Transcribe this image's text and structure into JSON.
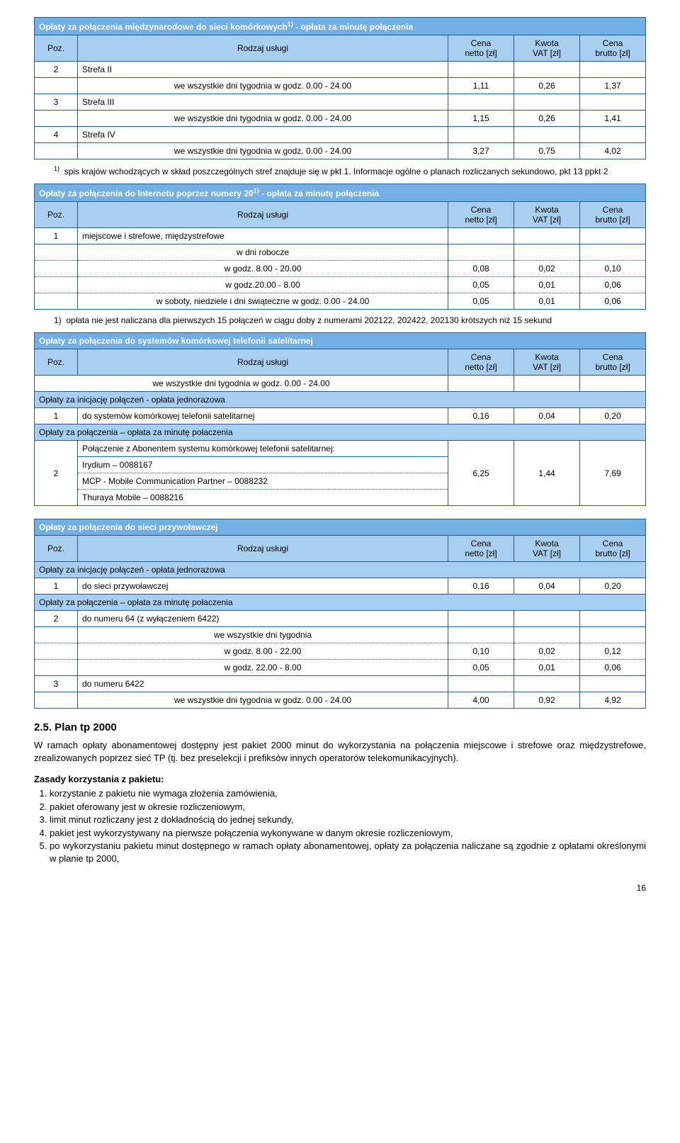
{
  "cols": {
    "poz": "Poz.",
    "name": "Rodzaj usługi",
    "c1a": "Cena",
    "c1b": "netto [zł]",
    "c2a": "Kwota",
    "c2b": "VAT [zł]",
    "c3a": "Cena",
    "c3b": "brutto [zł]"
  },
  "t1": {
    "title": "Opłaty za połączenia międzynarodowe do sieci komórkowych",
    "title_sup": "1)",
    "title2": " - opłata za minutę połączenia",
    "r2_poz": "2",
    "r2_txt": "Strefa II",
    "r2_sub": "we wszystkie dni tygodnia w godz. 0.00 - 24.00",
    "r2_v": [
      "1,11",
      "0,26",
      "1,37"
    ],
    "r3_poz": "3",
    "r3_txt": "Strefa III",
    "r3_sub": "we wszystkie dni tygodnia w godz. 0.00 - 24.00",
    "r3_v": [
      "1,15",
      "0,26",
      "1,41"
    ],
    "r4_poz": "4",
    "r4_txt": "Strefa IV",
    "r4_sub": "we wszystkie dni tygodnia w godz. 0.00 - 24.00",
    "r4_v": [
      "3,27",
      "0,75",
      "4,02"
    ],
    "foot_sup": "1)",
    "foot": "spis krajów wchodzących w skład poszczególnych stref znajduje się w pkt 1. Informacje ogólne o planach rozliczanych sekundowo, pkt 13 ppkt 2"
  },
  "t2": {
    "title": "Opłaty za połączenia do Internetu poprzez numery 20",
    "title_sup": "1)",
    "title2": " - opłata za minutę połączenia",
    "r1_poz": "1",
    "r1_txt": "miejscowe i strefowe, międzystrefowe",
    "sub1": "w dni robocze",
    "row_a": "w godz. 8.00 - 20.00",
    "va": [
      "0,08",
      "0,02",
      "0,10"
    ],
    "row_b": "w godz.20.00 - 8.00",
    "vb": [
      "0,05",
      "0,01",
      "0,06"
    ],
    "row_c": "w soboty, niedziele i dni świąteczne w godz. 0.00 - 24.00",
    "vc": [
      "0,05",
      "0,01",
      "0,06"
    ],
    "foot_pref": "1)",
    "foot": "opłata nie jest naliczana dla pierwszych 15 połączeń w ciągu doby z numerami 202122, 202422, 202130 krótszych niż 15 sekund"
  },
  "t3": {
    "title": "Opłaty za połączenia do systemów komórkowej telefonii satelitarnej",
    "row_all": "we wszystkie dni tygodnia w godz. 0.00 - 24.00",
    "sub1": "Opłaty za inicjację połączeń - opłata jednorazowa",
    "r1_poz": "1",
    "r1_txt": "do systemów komórkowej telefonii satelitarnej",
    "r1_v": [
      "0,16",
      "0,04",
      "0,20"
    ],
    "sub2": "Opłaty za połączenia – opłata za minutę połaczenia",
    "r2_poz": "2",
    "r2_txt": "Połączenie z Abonentem systemu komórkowej telefonii satelitarnej:",
    "r2a": "Irydium – 0088167",
    "r2b": "MCP - Mobile Communication Partner – 0088232",
    "r2c": "Thuraya Mobile – 0088216",
    "r2_v": [
      "6,25",
      "1,44",
      "7,69"
    ]
  },
  "t4": {
    "title": "Opłaty za połączenia do sieci przywoławczej",
    "sub1": "Opłaty za inicjację połączeń - opłata jednorazowa",
    "r1_poz": "1",
    "r1_txt": "do sieci przywoławczej",
    "r1_v": [
      "0,16",
      "0,04",
      "0,20"
    ],
    "sub2": "Opłaty za połączenia – opłata za minutę połaczenia",
    "r2_poz": "2",
    "r2_txt": "do numeru 64 (z wyłączeniem 6422)",
    "r2_sub": "we wszystkie dni tygodnia",
    "row_a": "w godz. 8.00 - 22.00",
    "va": [
      "0,10",
      "0,02",
      "0,12"
    ],
    "row_b": "w godz. 22.00 - 8.00",
    "vb": [
      "0,05",
      "0,01",
      "0,06"
    ],
    "r3_poz": "3",
    "r3_txt": "do numeru 6422",
    "r3_sub": "we wszystkie dni tygodnia w godz. 0.00 - 24.00",
    "r3_v": [
      "4,00",
      "0,92",
      "4,92"
    ]
  },
  "section": {
    "heading": "2.5. Plan tp 2000",
    "para": "W ramach opłaty abonamentowej dostępny jest pakiet 2000 minut do wykorzystania na połączenia miejscowe i strefowe oraz międzystrefowe, zrealizowanych poprzez sieć TP (tj. bez preselekcji i prefiksów innych operatorów telekomunikacyjnych).",
    "rules_title": "Zasady korzystania z pakietu:",
    "rules": [
      "korzystanie z pakietu nie wymaga złożenia zamówienia,",
      "pakiet oferowany jest w okresie rozliczeniowym,",
      "limit minut rozliczany jest z dokładnością do jednej sekundy,",
      "pakiet jest wykorzystywany na pierwsze połączenia wykonywane w danym okresie rozliczeniowym,",
      "po wykorzystaniu pakietu minut dostępnego w ramach opłaty abonamentowej, opłaty za połączenia naliczane są zgodnie z opłatami określonymi w planie tp 2000,"
    ]
  },
  "page": "16"
}
